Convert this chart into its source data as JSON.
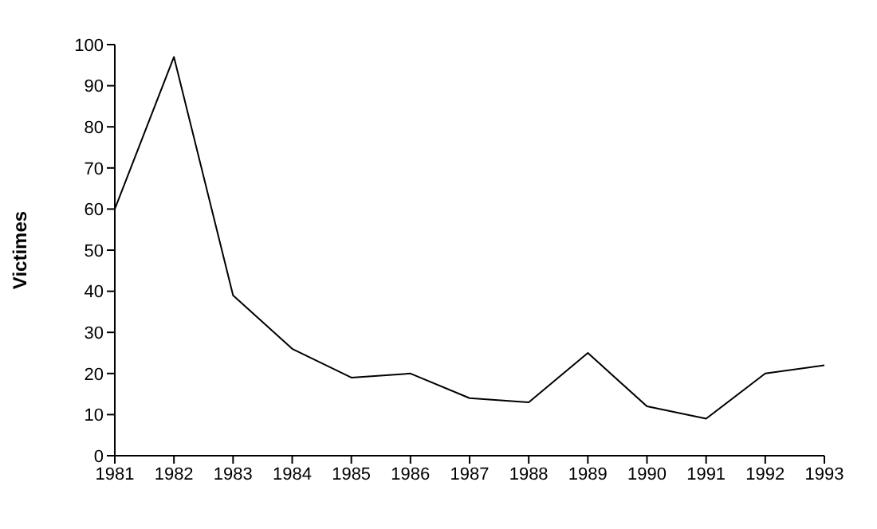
{
  "chart_data": {
    "type": "line",
    "ylabel": "Victimes",
    "categories": [
      "1981",
      "1982",
      "1983",
      "1984",
      "1985",
      "1986",
      "1987",
      "1988",
      "1989",
      "1990",
      "1991",
      "1992",
      "1993"
    ],
    "series": [
      {
        "color": "#000000",
        "values": [
          60,
          97,
          39,
          26,
          19,
          20,
          14,
          13,
          25,
          12,
          9,
          20,
          22
        ]
      }
    ],
    "ylim": [
      0,
      100
    ],
    "yticks": [
      0,
      10,
      20,
      30,
      40,
      50,
      60,
      70,
      80,
      90,
      100
    ],
    "grid": false,
    "legend": false,
    "marker": "none",
    "line_style": "solid"
  }
}
